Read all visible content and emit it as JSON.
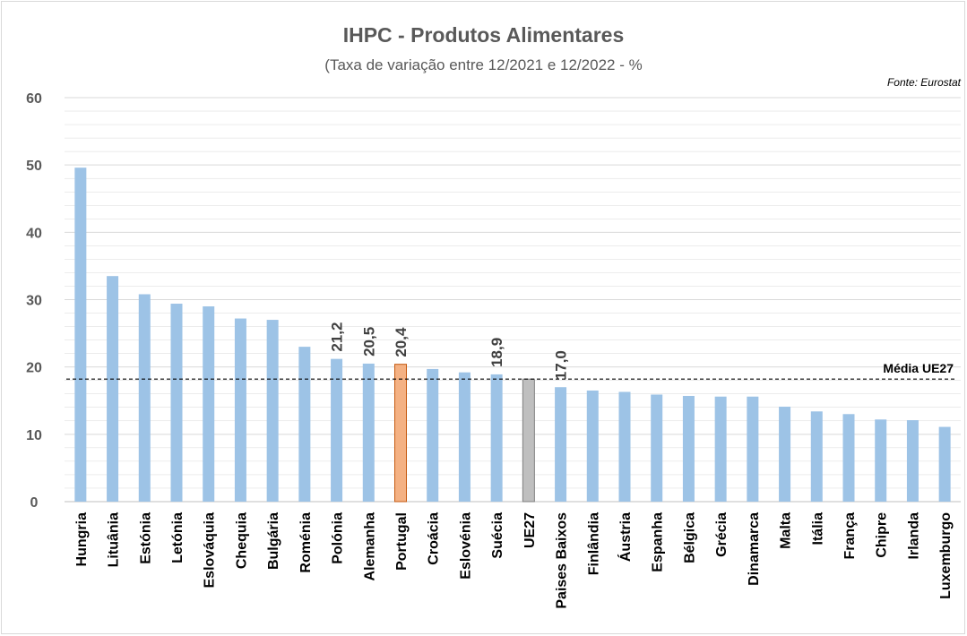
{
  "chart_data": {
    "type": "bar",
    "title": "IHPC - Produtos Alimentares",
    "subtitle": "(Taxa de variação entre 12/2021  e 12/2022 - %",
    "source": "Fonte: Eurostat",
    "categories": [
      "Hungria",
      "Lituânia",
      "Estónia",
      "Letónia",
      "Eslováquia",
      "Chequia",
      "Bulgária",
      "Roménia",
      "Polónia",
      "Alemanha",
      "Portugal",
      "Croácia",
      "Eslovénia",
      "Suécia",
      "UE27",
      "Paises Baixos",
      "Finlândia",
      "Áustria",
      "Espanha",
      "Bélgica",
      "Grécia",
      "Dinamarca",
      "Malta",
      "Itália",
      "França",
      "Chipre",
      "Irlanda",
      "Luxemburgo"
    ],
    "values": [
      49.6,
      33.5,
      30.8,
      29.4,
      29.0,
      27.2,
      27.0,
      23.0,
      21.2,
      20.5,
      20.4,
      19.7,
      19.2,
      18.9,
      18.2,
      17.0,
      16.5,
      16.3,
      15.9,
      15.7,
      15.6,
      15.6,
      14.1,
      13.4,
      13.0,
      12.2,
      12.1,
      11.1
    ],
    "data_labels": {
      "Polónia": "21,2",
      "Alemanha": "20,5",
      "Portugal": "20,4",
      "Suécia": "18,9",
      "Paises Baixos": "17,0"
    },
    "yticks": [
      "0",
      "10",
      "20",
      "30",
      "40",
      "50",
      "60"
    ],
    "ylim": [
      0,
      60
    ],
    "grid": true,
    "average_line": {
      "label": "Média UE27",
      "value": 18.2
    },
    "colors": {
      "default": "#9dc3e6",
      "Portugal": "#f4b183",
      "UE27": "#bfbfbf",
      "Portugal_stroke": "#c55a11",
      "UE27_stroke": "#7f7f7f",
      "grid": "#d9d9d9"
    }
  }
}
